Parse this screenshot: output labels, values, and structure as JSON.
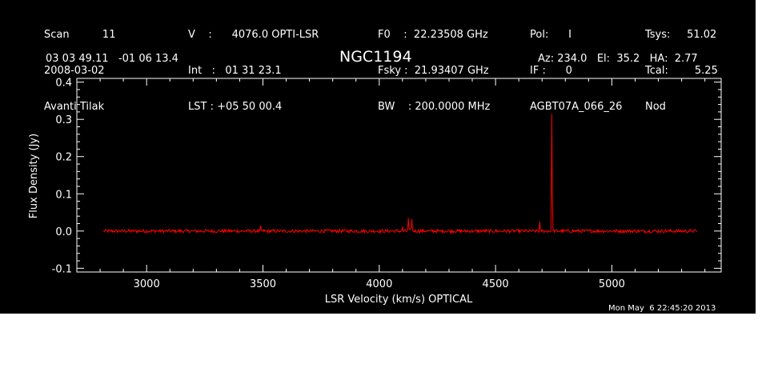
{
  "header": {
    "col1": [
      "Scan          11",
      "2008-03-02",
      "Avanti Tilak"
    ],
    "col2": [
      "V    :      4076.0 OPTI-LSR",
      "Int   :   01 31 23.1",
      "LST : +05 50 00.4"
    ],
    "col3": [
      "F0    :  22.23508 GHz",
      "Fsky :  21.93407 GHz",
      "BW    : 200.0000 MHz"
    ],
    "col4": [
      "Pol:      I",
      "IF :      0",
      "AGBT07A_066_26"
    ],
    "col5": [
      "Tsys:     51.02",
      "Tcal:        5.25",
      "Nod"
    ],
    "coords": "03 03 49.11   -01 06 13.4",
    "source": "NGC1194",
    "azelha": "Az: 234.0   El:  35.2   HA:  2.77",
    "timestamp": "Mon May  6 22:45:20 2013"
  },
  "chart_data": {
    "type": "line",
    "xlabel": "LSR Velocity (km/s) OPTICAL",
    "ylabel": "Flux Density (Jy)",
    "xlim": [
      2700,
      5470
    ],
    "ylim": [
      -0.11,
      0.41
    ],
    "x_ticks": [
      3000,
      3500,
      4000,
      4500,
      5000
    ],
    "y_ticks": [
      -0.1,
      0.0,
      0.1,
      0.2,
      0.3,
      0.4
    ],
    "x_tick_labels": [
      "3000",
      "3500",
      "4000",
      "4500",
      "5000"
    ],
    "y_tick_labels": [
      "-0.1",
      "0.0",
      "0.1",
      "0.2",
      "0.3",
      "0.4"
    ],
    "series": [
      {
        "color": "#ff0000",
        "x_range": [
          2815,
          5365
        ],
        "baseline": 0.0,
        "noise_rms": 0.003,
        "features": [
          {
            "x": 3490,
            "y": 0.015
          },
          {
            "x": 4100,
            "y": 0.012
          },
          {
            "x": 4125,
            "y": 0.035
          },
          {
            "x": 4140,
            "y": 0.032
          },
          {
            "x": 4690,
            "y": 0.025
          },
          {
            "x": 4742,
            "y": 0.315
          }
        ]
      }
    ],
    "grid": false
  }
}
